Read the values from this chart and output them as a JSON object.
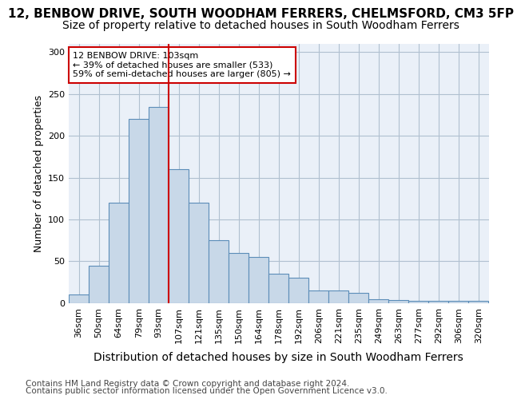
{
  "title_line1": "12, BENBOW DRIVE, SOUTH WOODHAM FERRERS, CHELMSFORD, CM3 5FP",
  "title_line2": "Size of property relative to detached houses in South Woodham Ferrers",
  "xlabel": "Distribution of detached houses by size in South Woodham Ferrers",
  "ylabel": "Number of detached properties",
  "categories": [
    "36sqm",
    "50sqm",
    "64sqm",
    "79sqm",
    "93sqm",
    "107sqm",
    "121sqm",
    "135sqm",
    "150sqm",
    "164sqm",
    "178sqm",
    "192sqm",
    "206sqm",
    "221sqm",
    "235sqm",
    "249sqm",
    "263sqm",
    "277sqm",
    "292sqm",
    "306sqm",
    "320sqm"
  ],
  "bar_values": [
    10,
    45,
    120,
    220,
    235,
    160,
    120,
    75,
    60,
    55,
    35,
    30,
    15,
    15,
    12,
    5,
    4,
    3,
    3,
    3,
    3
  ],
  "bar_color": "#c8d8e8",
  "bar_edge_color": "#5b8db8",
  "grid_color": "#b0c0d0",
  "background_color": "#eaf0f8",
  "vline_x": 4.5,
  "vline_color": "#cc0000",
  "annotation_text": "12 BENBOW DRIVE: 103sqm\n← 39% of detached houses are smaller (533)\n59% of semi-detached houses are larger (805) →",
  "annotation_box_color": "white",
  "annotation_box_edge_color": "#cc0000",
  "footer_line1": "Contains HM Land Registry data © Crown copyright and database right 2024.",
  "footer_line2": "Contains public sector information licensed under the Open Government Licence v3.0.",
  "ylim": [
    0,
    310
  ],
  "yticks": [
    0,
    50,
    100,
    150,
    200,
    250,
    300
  ],
  "title_fontsize": 11,
  "subtitle_fontsize": 10,
  "xlabel_fontsize": 10,
  "ylabel_fontsize": 9,
  "tick_fontsize": 8,
  "footer_fontsize": 7.5
}
